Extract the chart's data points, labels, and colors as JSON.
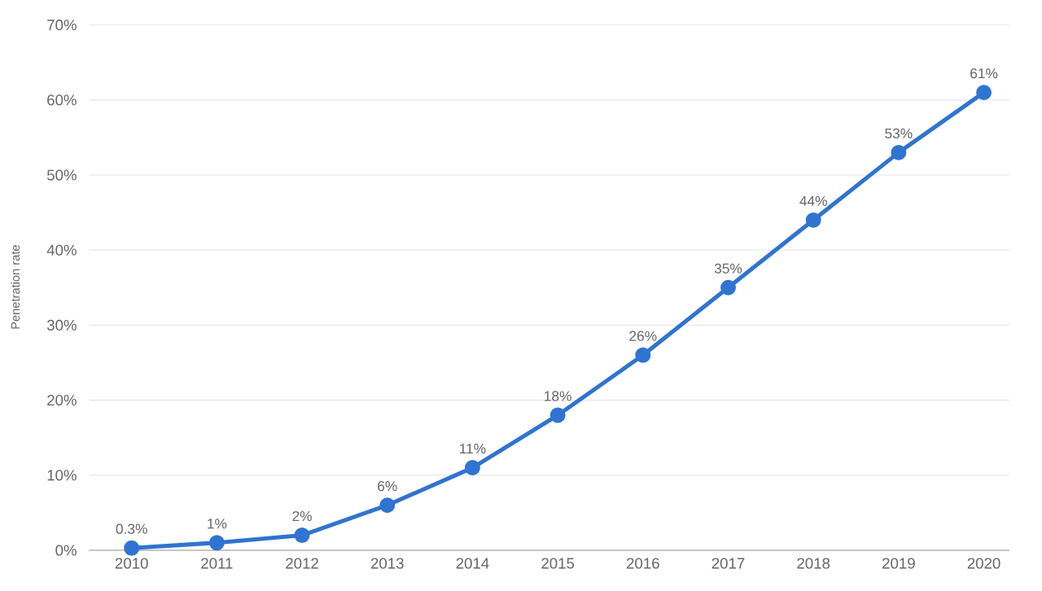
{
  "chart_data": {
    "type": "line",
    "ylabel": "Penetration rate",
    "categories": [
      "2010",
      "2011",
      "2012",
      "2013",
      "2014",
      "2015",
      "2016",
      "2017",
      "2018",
      "2019",
      "2020"
    ],
    "values": [
      0.3,
      1,
      2,
      6,
      11,
      18,
      26,
      35,
      44,
      53,
      61
    ],
    "value_labels": [
      "0.3%",
      "1%",
      "2%",
      "6%",
      "11%",
      "18%",
      "26%",
      "35%",
      "44%",
      "53%",
      "61%"
    ],
    "color": "#2f74d0",
    "marker": "circle",
    "line_style": "solid",
    "grid": "y",
    "ylim": [
      0,
      70
    ],
    "yticks": [
      {
        "value": 0,
        "label": "0%"
      },
      {
        "value": 10,
        "label": "10%"
      },
      {
        "value": 20,
        "label": "20%"
      },
      {
        "value": 30,
        "label": "30%"
      },
      {
        "value": 40,
        "label": "40%"
      },
      {
        "value": 50,
        "label": "50%"
      },
      {
        "value": 60,
        "label": "60%"
      },
      {
        "value": 70,
        "label": "70%"
      }
    ]
  }
}
